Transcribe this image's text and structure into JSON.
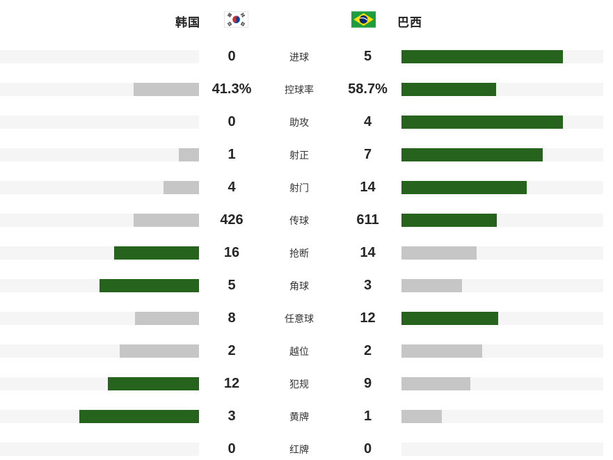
{
  "header": {
    "home_team": "韩国",
    "away_team": "巴西",
    "home_flag": "south-korea-flag",
    "away_flag": "brazil-flag"
  },
  "colors": {
    "win_bar": "#26641e",
    "lose_bar": "#c6c6c6",
    "track": "#f5f5f5",
    "value_text": "#262626",
    "label_text": "#333333"
  },
  "rows": [
    {
      "label": "进球",
      "home": "0",
      "away": "5",
      "home_value": 0,
      "away_value": 5
    },
    {
      "label": "控球率",
      "home": "41.3%",
      "away": "58.7%",
      "home_value": 41.3,
      "away_value": 58.7
    },
    {
      "label": "助攻",
      "home": "0",
      "away": "4",
      "home_value": 0,
      "away_value": 4
    },
    {
      "label": "射正",
      "home": "1",
      "away": "7",
      "home_value": 1,
      "away_value": 7
    },
    {
      "label": "射门",
      "home": "4",
      "away": "14",
      "home_value": 4,
      "away_value": 14
    },
    {
      "label": "传球",
      "home": "426",
      "away": "611",
      "home_value": 426,
      "away_value": 611
    },
    {
      "label": "抢断",
      "home": "16",
      "away": "14",
      "home_value": 16,
      "away_value": 14
    },
    {
      "label": "角球",
      "home": "5",
      "away": "3",
      "home_value": 5,
      "away_value": 3
    },
    {
      "label": "任意球",
      "home": "8",
      "away": "12",
      "home_value": 8,
      "away_value": 12
    },
    {
      "label": "越位",
      "home": "2",
      "away": "2",
      "home_value": 2,
      "away_value": 2
    },
    {
      "label": "犯规",
      "home": "12",
      "away": "9",
      "home_value": 12,
      "away_value": 9
    },
    {
      "label": "黄牌",
      "home": "3",
      "away": "1",
      "home_value": 3,
      "away_value": 1
    },
    {
      "label": "红牌",
      "home": "0",
      "away": "0",
      "home_value": 0,
      "away_value": 0
    }
  ],
  "chart_data": {
    "type": "bar",
    "orientation": "horizontal-diverging",
    "categories": [
      "进球",
      "控球率",
      "助攻",
      "射正",
      "射门",
      "传球",
      "抢断",
      "角球",
      "任意球",
      "越位",
      "犯规",
      "黄牌",
      "红牌"
    ],
    "series": [
      {
        "name": "韩国",
        "values": [
          0,
          41.3,
          0,
          1,
          4,
          426,
          16,
          5,
          8,
          2,
          12,
          3,
          0
        ]
      },
      {
        "name": "巴西",
        "values": [
          5,
          58.7,
          4,
          7,
          14,
          611,
          14,
          3,
          12,
          2,
          9,
          1,
          0
        ]
      }
    ],
    "bar_rule": "fill fraction = 0.8 * value / (home+away); winner bar green #26641e, other bars gray #c6c6c6, empty track #f5f5f5",
    "legend_position": "top (team names with flags)",
    "grid": false
  }
}
